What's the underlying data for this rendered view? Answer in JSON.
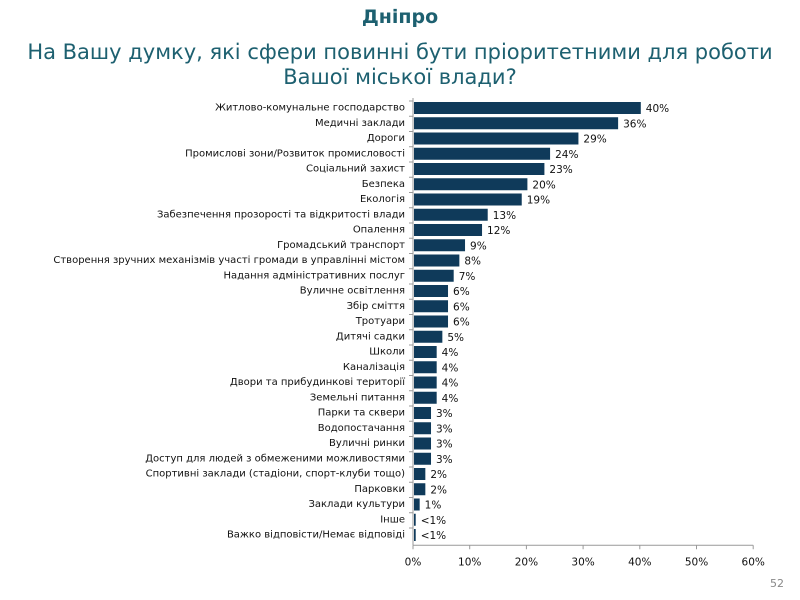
{
  "header": {
    "city": "Дніпро",
    "title": "На Вашу думку, які сфери повинні бути пріоритетними для роботи Вашої міської влади?"
  },
  "page_number": "52",
  "chart_data": {
    "type": "bar",
    "orientation": "horizontal",
    "title": "На Вашу думку, які сфери повинні бути пріоритетними для роботи Вашої міської влади?",
    "xlabel": "",
    "ylabel": "",
    "xlim": [
      0,
      60
    ],
    "x_ticks": [
      "0%",
      "10%",
      "20%",
      "30%",
      "40%",
      "50%",
      "60%"
    ],
    "grid": false,
    "bar_color": "#0f3a5a",
    "categories": [
      "Житлово-комунальне господарство",
      "Медичні заклади",
      "Дороги",
      "Промислові зони/Розвиток промисловості",
      "Соціальний захист",
      "Безпека",
      "Екологія",
      "Забезпечення прозорості та відкритості влади",
      "Опалення",
      "Громадський транспорт",
      "Створення зручних механізмів участі громади в управлінні містом",
      "Надання адміністративних послуг",
      "Вуличне освітлення",
      "Збір сміття",
      "Тротуари",
      "Дитячі садки",
      "Школи",
      "Каналізація",
      "Двори та прибудинкові території",
      "Земельні питання",
      "Парки та сквери",
      "Водопостачання",
      "Вуличні ринки",
      "Доступ для людей з обмеженими можливостями",
      "Спортивні заклади (стадіони, спорт-клуби тощо)",
      "Парковки",
      "Заклади культури",
      "Інше",
      "Важко відповісти/Немає відповіді"
    ],
    "values": [
      40,
      36,
      29,
      24,
      23,
      20,
      19,
      13,
      12,
      9,
      8,
      7,
      6,
      6,
      6,
      5,
      4,
      4,
      4,
      4,
      3,
      3,
      3,
      3,
      2,
      2,
      1,
      0.3,
      0.3
    ],
    "data_labels": [
      "40%",
      "36%",
      "29%",
      "24%",
      "23%",
      "20%",
      "19%",
      "13%",
      "12%",
      "9%",
      "8%",
      "7%",
      "6%",
      "6%",
      "6%",
      "5%",
      "4%",
      "4%",
      "4%",
      "4%",
      "3%",
      "3%",
      "3%",
      "3%",
      "2%",
      "2%",
      "1%",
      "<1%",
      "<1%"
    ]
  }
}
